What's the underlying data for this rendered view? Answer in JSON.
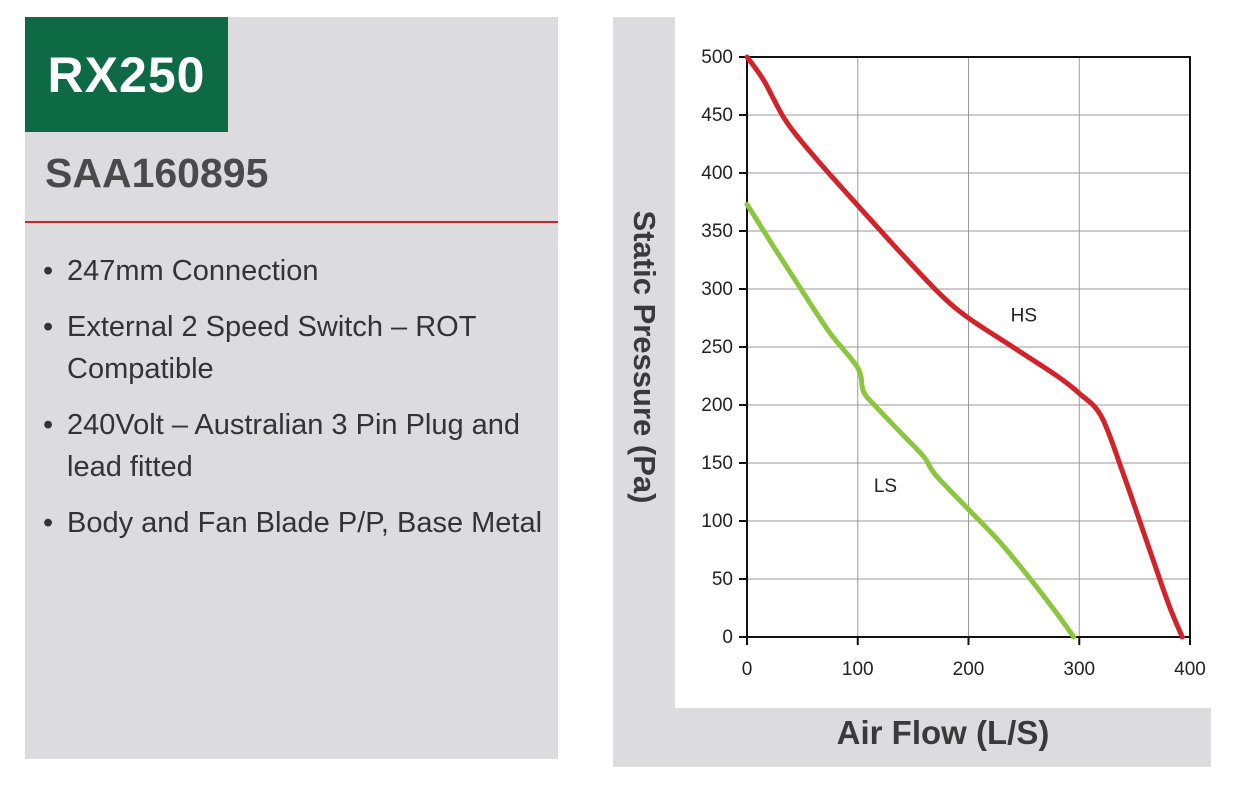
{
  "product": {
    "model": "RX250",
    "part_number": "SAA160895",
    "features": [
      "247mm Connection",
      "External 2 Speed Switch – ROT Compatible",
      "240Volt – Australian 3 Pin Plug and lead fitted",
      "Body and Fan Blade P/P, Base Metal"
    ]
  },
  "colors": {
    "badge": "#0e6a45",
    "divider": "#d2232a",
    "panel": "#dcdcde",
    "hs": "#d2232a",
    "ls": "#8cc63f"
  },
  "chart_data": {
    "type": "line",
    "xlabel": "Air Flow (L/S)",
    "ylabel": "Static Pressure (Pa)",
    "xlim": [
      0,
      400
    ],
    "ylim": [
      0,
      500
    ],
    "xticks": [
      0,
      100,
      200,
      300,
      400
    ],
    "yticks": [
      0,
      50,
      100,
      150,
      200,
      250,
      300,
      350,
      400,
      450,
      500
    ],
    "grid": true,
    "series": [
      {
        "name": "HS",
        "color": "#d2232a",
        "x": [
          0,
          15,
          35,
          60,
          100,
          140,
          175,
          200,
          240,
          280,
          300,
          320,
          340,
          360,
          380,
          393
        ],
        "y": [
          500,
          480,
          445,
          415,
          372,
          330,
          295,
          275,
          250,
          225,
          210,
          190,
          140,
          85,
          30,
          0
        ]
      },
      {
        "name": "LS",
        "color": "#8cc63f",
        "x": [
          0,
          25,
          50,
          75,
          100,
          105,
          115,
          140,
          160,
          170,
          200,
          230,
          260,
          280,
          295
        ],
        "y": [
          373,
          335,
          298,
          262,
          232,
          212,
          200,
          175,
          155,
          140,
          110,
          80,
          45,
          20,
          0
        ]
      }
    ]
  }
}
